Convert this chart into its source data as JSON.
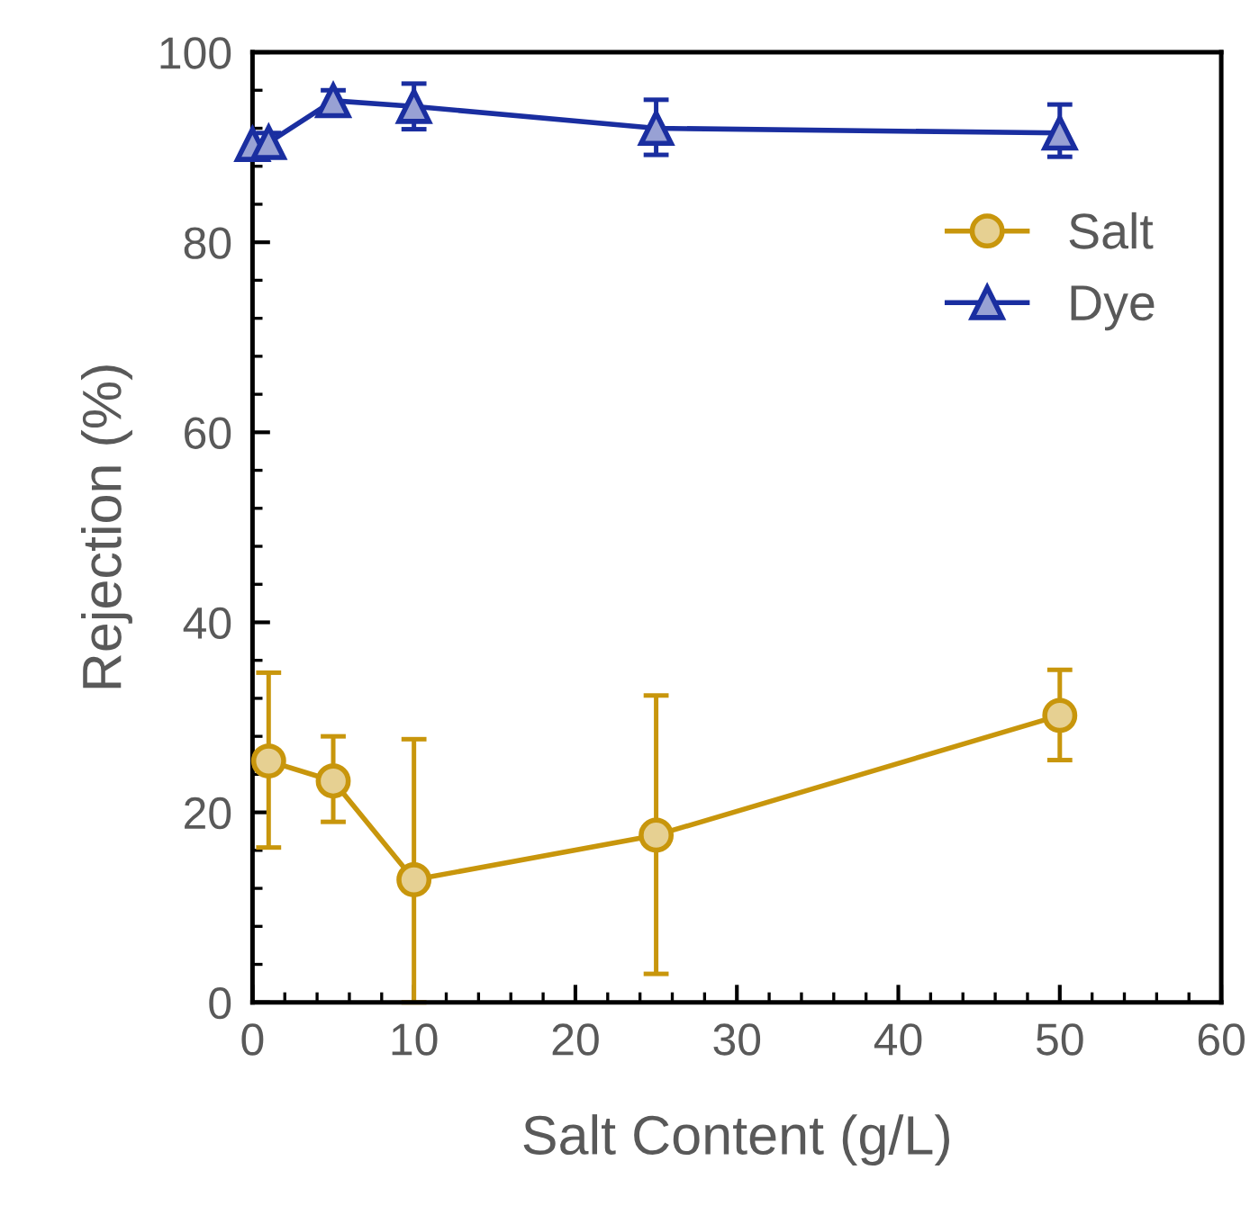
{
  "chart_data": {
    "type": "line",
    "xlabel": "Salt Content (g/L)",
    "ylabel": "Rejection (%)",
    "xlim": [
      0,
      60
    ],
    "xticks": [
      0,
      10,
      20,
      30,
      40,
      50,
      60
    ],
    "ylim": [
      0,
      100
    ],
    "yticks": [
      0,
      20,
      40,
      60,
      80,
      100
    ],
    "grid": false,
    "legend": "top right",
    "line_style": "solid",
    "series": [
      {
        "name": "Salt",
        "color": "#c8960c",
        "marker": "circle",
        "x": [
          1,
          5,
          10,
          25,
          50
        ],
        "values": [
          25.4,
          23.3,
          12.9,
          17.6,
          30.2
        ],
        "errors": [
          [
            16.3,
            34.7
          ],
          [
            19.0,
            28.0
          ],
          [
            0,
            27.7
          ],
          [
            3.0,
            32.3
          ],
          [
            25.5,
            35.0
          ]
        ]
      },
      {
        "name": "Dye",
        "color": "#1a2ea0",
        "marker": "triangle",
        "x": [
          0,
          1,
          5,
          10,
          25,
          50
        ],
        "values": [
          90.3,
          90.5,
          94.9,
          94.3,
          92.0,
          91.5
        ],
        "errors": [
          null,
          [
            89.5,
            91.5
          ],
          [
            93.5,
            96.0
          ],
          [
            91.9,
            96.7
          ],
          [
            89.2,
            95.0
          ],
          [
            89.0,
            94.5
          ]
        ]
      }
    ]
  }
}
